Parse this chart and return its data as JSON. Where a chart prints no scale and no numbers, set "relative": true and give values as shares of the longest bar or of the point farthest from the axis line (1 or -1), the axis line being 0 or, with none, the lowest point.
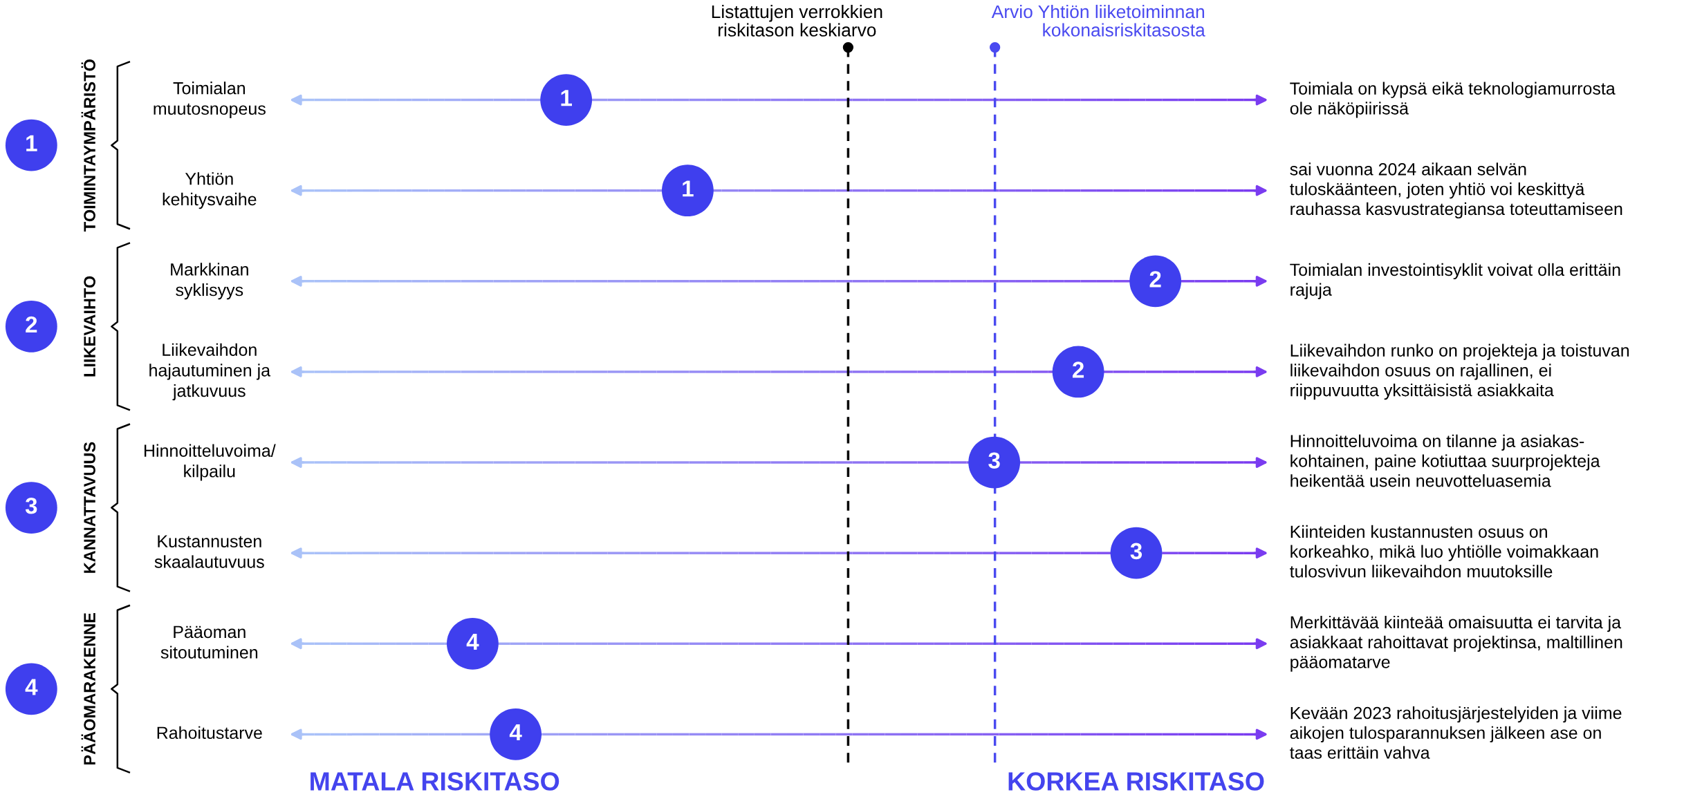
{
  "chart_data": {
    "type": "scatter",
    "orientation": "horizontal",
    "relative": true,
    "marker": "circle",
    "categories": [
      "Toimialan\nmuutosnopeus",
      "Yhtiön\nkehitysvaihe",
      "Markkinan\nsyklisyys",
      "Liikevaihdon\nhajautuminen ja\njatkuvuus",
      "Hinnoitteluvoima/\nkilpailu",
      "Kustannusten\nskaalautuvuus",
      "Pääoman\nsitoutuminen",
      "Rahoitustarve"
    ],
    "series": [
      {
        "color": "#3f3fee",
        "values": [
          0.137,
          0.315,
          null,
          null,
          null,
          null,
          null,
          null
        ]
      },
      {
        "color": "#3f3fee",
        "values": [
          null,
          null,
          1.0,
          0.887,
          null,
          null,
          null,
          null
        ]
      },
      {
        "color": "#3f3fee",
        "values": [
          null,
          null,
          null,
          null,
          0.764,
          0.972,
          null,
          null
        ]
      },
      {
        "color": "#3f3fee",
        "values": [
          null,
          null,
          null,
          null,
          null,
          null,
          0,
          0.063
        ]
      }
    ],
    "ref_lines": [
      {
        "axis": "x",
        "value": 0.55,
        "label": "Listattujen verrokkien\nriskitason keskiarvo",
        "color": "#000000",
        "line_style": "dashed"
      },
      {
        "axis": "x",
        "value": 0.765,
        "label": "Arvio Yhtiön liiketoiminnan\nkokonaisriskitasosta",
        "color": "#4a4af0",
        "line_style": "dashed"
      }
    ],
    "annotations": [
      "Toimiala on kypsä eikä teknologiamurrosta\nole näköpiirissä",
      "sai vuonna 2024 aikaan selvän\ntuloskäänteen, joten yhtiö voi keskittyä\nrauhassa kasvustrategiansa toteuttamiseen",
      "Toimialan investointisyklit voivat olla erittäin\nrajuja",
      "Liikevaihdon runko on projekteja ja toistuvan\nliikevaihdon osuus on rajallinen, ei\nriippuvuutta yksittäisistä asiakkaita",
      "Hinnoitteluvoima on tilanne ja asiakas-\nkohtainen, paine kotiuttaa suurprojekteja\nheikentää usein neuvotteluasemia",
      "Kiinteiden kustannusten osuus on\nkorkeahko, mikä luo yhtiölle voimakkaan\ntulosvivun liikevaihdon muutoksille",
      "Merkittävää kiinteää omaisuutta ei tarvita ja\nasiakkaat rahoittavat projektinsa, maltillinen\npääomatarve",
      "Kevään 2023 rahoitusjärjestelyiden ja viime\naikojen tulosparannuksen jälkeen ase on\ntaas erittäin vahva",
      "MATALA RISKITASO",
      "KORKEA RISKITASO",
      "TOIMINTAYMPÄRISTÖ",
      "LIIKEVAIHTO",
      "KANNATTAVUUS",
      "PÄÄOMARAKENNE",
      "1",
      "2",
      "3",
      "4",
      "1",
      "1",
      "2",
      "2",
      "3",
      "3",
      "4",
      "4"
    ]
  }
}
